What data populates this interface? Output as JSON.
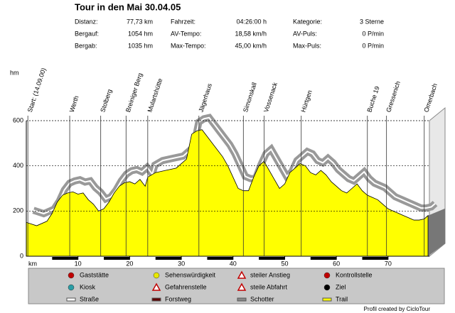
{
  "chart_data": {
    "type": "area",
    "title": "Tour in den Mai 30.04.05",
    "stats": [
      [
        [
          "Distanz:",
          "77,73 km"
        ],
        [
          "Fahrzeit:",
          "04:26:00 h"
        ],
        [
          "Kategorie:",
          "3 Sterne"
        ]
      ],
      [
        [
          "Bergauf:",
          "1054 hm"
        ],
        [
          "AV-Tempo:",
          "18,58 km/h"
        ],
        [
          "AV-Puls:",
          "0 P/min"
        ]
      ],
      [
        [
          "Bergab:",
          "1035 hm"
        ],
        [
          "Max-Tempo:",
          "45,00 km/h"
        ],
        [
          "Max-Puls:",
          "0 P/min"
        ]
      ]
    ],
    "ylabel": "hm",
    "xlabel": "km",
    "xlim": [
      0,
      78
    ],
    "ylim": [
      0,
      600
    ],
    "xticks": [
      10,
      20,
      30,
      40,
      50,
      60,
      70
    ],
    "yticks": [
      0,
      200,
      400,
      600
    ],
    "grid": true,
    "color": "#ffff00",
    "x": [
      0,
      2,
      4,
      5,
      6,
      7,
      8,
      9,
      10,
      11,
      12,
      13,
      14,
      15,
      16,
      17,
      18,
      19,
      20,
      21,
      22,
      23,
      23.5,
      25,
      27,
      29,
      31,
      32,
      33,
      34,
      35,
      36,
      37,
      38,
      39,
      40,
      41,
      42,
      43,
      44,
      45,
      46,
      47,
      48,
      49,
      50,
      51,
      52,
      53,
      54,
      55,
      56,
      57,
      58,
      59,
      60,
      61,
      62,
      63,
      64,
      65,
      66,
      67,
      68,
      69,
      70,
      71,
      72,
      73,
      74,
      75,
      76,
      77,
      77.73
    ],
    "values": [
      150,
      135,
      155,
      190,
      240,
      270,
      280,
      285,
      275,
      280,
      250,
      230,
      200,
      210,
      240,
      280,
      310,
      325,
      330,
      320,
      340,
      310,
      350,
      370,
      380,
      390,
      430,
      540,
      555,
      560,
      530,
      500,
      470,
      440,
      400,
      350,
      300,
      290,
      290,
      350,
      400,
      420,
      380,
      340,
      300,
      320,
      370,
      390,
      410,
      400,
      370,
      360,
      380,
      360,
      330,
      310,
      290,
      280,
      300,
      320,
      290,
      270,
      260,
      250,
      230,
      210,
      200,
      190,
      180,
      170,
      160,
      160,
      165,
      180
    ],
    "waypoints": [
      {
        "name": "Start: (14.09.00)",
        "km": 0.3
      },
      {
        "name": "Werth",
        "km": 8.4
      },
      {
        "name": "Stolberg",
        "km": 14.4
      },
      {
        "name": "Breiniger Berg",
        "km": 19.3
      },
      {
        "name": "Mulartshütte",
        "km": 23.5
      },
      {
        "name": "Jägerhaus",
        "km": 33.4
      },
      {
        "name": "Simonskall",
        "km": 42
      },
      {
        "name": "Vossenack",
        "km": 46
      },
      {
        "name": "Hürtgen",
        "km": 53.2
      },
      {
        "name": "Buche 19",
        "km": 66
      },
      {
        "name": "Gressenich",
        "km": 69.7
      },
      {
        "name": "Omerbach",
        "km": 77
      }
    ],
    "legend": [
      [
        "Gaststätte",
        "Sehenswürdigkeit",
        "steiler Anstieg",
        "Kontrollstelle"
      ],
      [
        "Kiosk",
        "Gefahrenstelle",
        "steile Abfahrt",
        "Ziel"
      ],
      [
        "Straße",
        "Forstweg",
        "Schotter",
        "Trail"
      ]
    ],
    "footer": "Profil created by CicloTour"
  }
}
